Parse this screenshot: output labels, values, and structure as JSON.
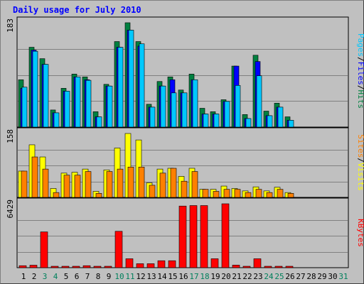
{
  "title": "Daily usage for July 2010",
  "colors": {
    "hits": "#008040",
    "files": "#0000ff",
    "pages": "#00c8ff",
    "visits": "#ffff00",
    "sites": "#ff8000",
    "kbytes": "#ff0000",
    "weekend_day": "#00805c",
    "weekday": "#000000"
  },
  "chart_data": [
    {
      "type": "bar",
      "name_panel": "hits-files-pages",
      "categories": [
        "1",
        "2",
        "3",
        "4",
        "5",
        "6",
        "7",
        "8",
        "9",
        "10",
        "11",
        "12",
        "13",
        "14",
        "15",
        "16",
        "17",
        "18",
        "19",
        "20",
        "21",
        "22",
        "23",
        "24",
        "25",
        "26",
        "27",
        "28",
        "29",
        "30",
        "31"
      ],
      "ymax_label": "183",
      "ylim": [
        0,
        183
      ],
      "series": [
        {
          "name": "Hits",
          "values": [
            83,
            140,
            120,
            30,
            68,
            93,
            88,
            27,
            75,
            150,
            183,
            150,
            40,
            80,
            88,
            65,
            93,
            33,
            27,
            48,
            107,
            22,
            126,
            28,
            42,
            18,
            0,
            0,
            0,
            0,
            0
          ]
        },
        {
          "name": "Files",
          "values": [
            68,
            135,
            110,
            25,
            63,
            88,
            83,
            18,
            72,
            140,
            170,
            142,
            35,
            72,
            83,
            60,
            83,
            23,
            23,
            45,
            107,
            15,
            115,
            20,
            35,
            12,
            0,
            0,
            0,
            0,
            0
          ]
        },
        {
          "name": "Pages",
          "values": [
            70,
            133,
            110,
            25,
            63,
            88,
            82,
            18,
            72,
            140,
            170,
            146,
            35,
            72,
            60,
            60,
            83,
            23,
            23,
            45,
            73,
            15,
            90,
            20,
            35,
            12,
            0,
            0,
            0,
            0,
            0
          ]
        }
      ],
      "legend": [
        "Pages",
        "Files",
        "Hits"
      ]
    },
    {
      "type": "bar",
      "name_panel": "visits-sites",
      "categories": [
        "1",
        "2",
        "3",
        "4",
        "5",
        "6",
        "7",
        "8",
        "9",
        "10",
        "11",
        "12",
        "13",
        "14",
        "15",
        "16",
        "17",
        "18",
        "19",
        "20",
        "21",
        "22",
        "23",
        "24",
        "25",
        "26",
        "27",
        "28",
        "29",
        "30",
        "31"
      ],
      "ymax_label": "158",
      "ylim": [
        0,
        158
      ],
      "series": [
        {
          "name": "Visits",
          "values": [
            65,
            130,
            100,
            22,
            60,
            62,
            70,
            15,
            68,
            122,
            158,
            142,
            36,
            70,
            72,
            52,
            72,
            20,
            20,
            28,
            22,
            16,
            26,
            16,
            25,
            12,
            0,
            0,
            0,
            0,
            0
          ]
        },
        {
          "name": "Sites",
          "values": [
            65,
            100,
            70,
            12,
            55,
            55,
            64,
            10,
            64,
            70,
            75,
            75,
            30,
            60,
            72,
            40,
            64,
            20,
            15,
            20,
            20,
            12,
            20,
            12,
            20,
            10,
            0,
            0,
            0,
            0,
            0
          ]
        }
      ],
      "legend": [
        "Sites",
        "Visits"
      ]
    },
    {
      "type": "bar",
      "name_panel": "kbytes",
      "categories": [
        "1",
        "2",
        "3",
        "4",
        "5",
        "6",
        "7",
        "8",
        "9",
        "10",
        "11",
        "12",
        "13",
        "14",
        "15",
        "16",
        "17",
        "18",
        "19",
        "20",
        "21",
        "22",
        "23",
        "24",
        "25",
        "26",
        "27",
        "28",
        "29",
        "30",
        "31"
      ],
      "ymax_label": "6429",
      "ylim": [
        0,
        6429
      ],
      "series": [
        {
          "name": "KBytes",
          "values": [
            200,
            250,
            3600,
            130,
            130,
            130,
            200,
            90,
            130,
            3660,
            900,
            400,
            400,
            700,
            700,
            6200,
            6250,
            6250,
            900,
            6429,
            260,
            90,
            900,
            90,
            90,
            130,
            0,
            0,
            0,
            0,
            0
          ]
        }
      ],
      "legend": [
        "KBytes"
      ]
    }
  ],
  "x_axis": {
    "labels": [
      "1",
      "2",
      "3",
      "4",
      "5",
      "6",
      "7",
      "8",
      "9",
      "10",
      "11",
      "12",
      "13",
      "14",
      "15",
      "16",
      "17",
      "18",
      "19",
      "20",
      "21",
      "22",
      "23",
      "24",
      "25",
      "26",
      "27",
      "28",
      "29",
      "30",
      "31"
    ],
    "weekend_days": [
      "3",
      "4",
      "10",
      "11",
      "17",
      "18",
      "24",
      "25",
      "31"
    ]
  }
}
